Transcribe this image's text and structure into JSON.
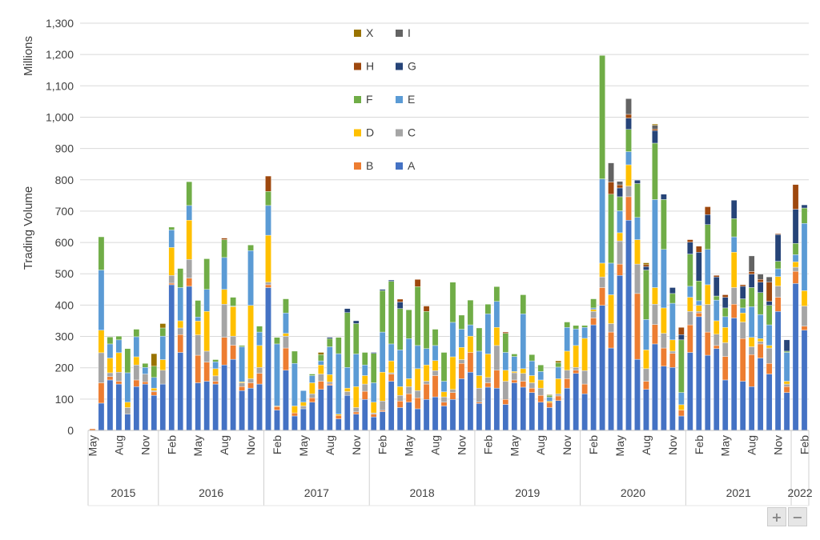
{
  "chart_data": {
    "type": "bar",
    "stacked": true,
    "title": "",
    "ylabel": "Trading Volume",
    "yunit_label": "Millions",
    "ylim": [
      0,
      1300
    ],
    "ytick_step": 100,
    "ytick_labels": [
      "0",
      "100",
      "200",
      "300",
      "400",
      "500",
      "600",
      "700",
      "800",
      "900",
      "1,000",
      "1,100",
      "1,200",
      "1,300"
    ],
    "grid": true,
    "legend_placement": "top-center",
    "first_period": "May 2015",
    "last_period": "Feb 2022",
    "tick_every": 3,
    "x_tick_labels": [
      "May",
      "Aug",
      "Nov",
      "Feb",
      "May",
      "Aug",
      "Nov",
      "Feb",
      "May",
      "Aug",
      "Nov",
      "Feb",
      "May",
      "Aug",
      "Nov",
      "Feb",
      "May",
      "Aug",
      "Nov",
      "Feb",
      "May",
      "Aug",
      "Nov",
      "Feb",
      "May",
      "Aug",
      "Nov",
      "Feb"
    ],
    "years": [
      {
        "label": "2015",
        "months": 8
      },
      {
        "label": "2016",
        "months": 12
      },
      {
        "label": "2017",
        "months": 12
      },
      {
        "label": "2018",
        "months": 12
      },
      {
        "label": "2019",
        "months": 12
      },
      {
        "label": "2020",
        "months": 12
      },
      {
        "label": "2021",
        "months": 12
      },
      {
        "label": "2022",
        "months": 2
      }
    ],
    "series": [
      {
        "name": "A",
        "color": "#4472C4",
        "values": [
          0,
          87,
          161,
          148,
          52,
          140,
          148,
          112,
          148,
          465,
          249,
          460,
          152,
          157,
          148,
          209,
          227,
          127,
          135,
          148,
          456,
          65,
          192,
          46,
          69,
          90,
          131,
          144,
          37,
          112,
          52,
          99,
          43,
          60,
          157,
          73,
          90,
          69,
          99,
          107,
          78,
          99,
          165,
          186,
          86,
          138,
          135,
          83,
          152,
          138,
          121,
          90,
          73,
          95,
          135,
          182,
          117,
          337,
          399,
          263,
          495,
          671,
          227,
          131,
          276,
          205,
          201,
          46,
          249,
          363,
          240,
          261,
          161,
          359,
          157,
          140,
          231,
          180,
          380,
          121,
          469,
          320
        ]
      },
      {
        "name": "B",
        "color": "#ED7D31",
        "values": [
          5,
          65,
          11,
          9,
          0,
          21,
          7,
          11,
          0,
          5,
          57,
          26,
          88,
          61,
          9,
          88,
          45,
          13,
          17,
          34,
          9,
          11,
          71,
          10,
          0,
          14,
          26,
          4,
          11,
          0,
          7,
          26,
          9,
          4,
          23,
          21,
          27,
          35,
          49,
          68,
          12,
          22,
          49,
          63,
          4,
          14,
          57,
          16,
          9,
          19,
          14,
          22,
          16,
          15,
          30,
          10,
          31,
          22,
          57,
          51,
          36,
          75,
          210,
          26,
          62,
          58,
          45,
          19,
          88,
          12,
          74,
          10,
          75,
          44,
          136,
          102,
          45,
          34,
          45,
          19,
          39,
          13
        ]
      },
      {
        "name": "C",
        "color": "#A5A5A5",
        "values": [
          0,
          96,
          12,
          29,
          21,
          48,
          25,
          4,
          44,
          25,
          21,
          60,
          65,
          35,
          17,
          106,
          29,
          12,
          13,
          19,
          8,
          0,
          38,
          0,
          9,
          13,
          23,
          7,
          0,
          12,
          14,
          23,
          4,
          30,
          4,
          18,
          23,
          23,
          9,
          16,
          17,
          10,
          12,
          0,
          45,
          17,
          79,
          58,
          23,
          25,
          17,
          23,
          0,
          7,
          27,
          9,
          43,
          21,
          34,
          27,
          74,
          34,
          94,
          40,
          65,
          47,
          7,
          0,
          43,
          5,
          88,
          36,
          44,
          53,
          53,
          25,
          8,
          49,
          36,
          8,
          13,
          64
        ]
      },
      {
        "name": "D",
        "color": "#FFC000",
        "values": [
          0,
          72,
          47,
          62,
          17,
          26,
          0,
          8,
          34,
          89,
          23,
          125,
          44,
          127,
          23,
          47,
          94,
          3,
          234,
          70,
          150,
          2,
          9,
          22,
          12,
          35,
          29,
          23,
          4,
          11,
          67,
          27,
          34,
          92,
          38,
          28,
          25,
          70,
          52,
          32,
          16,
          104,
          39,
          52,
          40,
          75,
          58,
          35,
          4,
          15,
          23,
          26,
          4,
          48,
          61,
          70,
          103,
          6,
          44,
          92,
          26,
          68,
          78,
          60,
          53,
          81,
          36,
          17,
          45,
          19,
          63,
          43,
          49,
          113,
          29,
          30,
          9,
          8,
          30,
          9,
          17,
          49
        ]
      },
      {
        "name": "E",
        "color": "#5B9BD5",
        "values": [
          0,
          192,
          45,
          41,
          94,
          64,
          21,
          34,
          75,
          56,
          106,
          47,
          13,
          70,
          22,
          102,
          2,
          112,
          175,
          43,
          95,
          198,
          65,
          136,
          37,
          23,
          13,
          89,
          193,
          66,
          104,
          34,
          62,
          128,
          54,
          117,
          128,
          74,
          52,
          48,
          34,
          110,
          58,
          36,
          78,
          128,
          83,
          57,
          48,
          175,
          47,
          27,
          13,
          37,
          76,
          53,
          35,
          5,
          269,
          101,
          70,
          42,
          71,
          97,
          281,
          187,
          117,
          39,
          35,
          15,
          113,
          66,
          34,
          49,
          16,
          98,
          77,
          66,
          25,
          92,
          23,
          215
        ]
      },
      {
        "name": "F",
        "color": "#70AD47",
        "values": [
          0,
          106,
          22,
          12,
          77,
          24,
          13,
          36,
          26,
          9,
          61,
          76,
          53,
          98,
          7,
          57,
          28,
          4,
          18,
          19,
          45,
          21,
          45,
          39,
          0,
          5,
          20,
          26,
          52,
          175,
          97,
          40,
          94,
          132,
          200,
          132,
          92,
          188,
          119,
          52,
          92,
          128,
          45,
          79,
          74,
          31,
          47,
          61,
          8,
          61,
          20,
          21,
          6,
          14,
          17,
          11,
          6,
          29,
          394,
          220,
          45,
          71,
          108,
          158,
          180,
          159,
          31,
          168,
          103,
          63,
          79,
          13,
          28,
          58,
          29,
          61,
          70,
          62,
          24,
          4,
          36,
          49
        ]
      },
      {
        "name": "G",
        "color": "#264478",
        "values": [
          0,
          0,
          0,
          0,
          0,
          0,
          0,
          0,
          0,
          0,
          0,
          0,
          0,
          0,
          0,
          0,
          0,
          0,
          0,
          0,
          0,
          0,
          0,
          0,
          0,
          0,
          0,
          4,
          0,
          13,
          9,
          0,
          3,
          4,
          4,
          21,
          0,
          0,
          0,
          0,
          0,
          0,
          0,
          0,
          0,
          0,
          0,
          0,
          0,
          0,
          0,
          0,
          0,
          0,
          0,
          0,
          0,
          0,
          0,
          0,
          28,
          36,
          11,
          11,
          40,
          17,
          19,
          17,
          38,
          92,
          32,
          61,
          34,
          59,
          40,
          43,
          33,
          13,
          85,
          36,
          109,
          10
        ]
      },
      {
        "name": "H",
        "color": "#9E480E",
        "values": [
          0,
          0,
          0,
          0,
          0,
          0,
          0,
          0,
          0,
          0,
          0,
          0,
          0,
          0,
          0,
          5,
          0,
          0,
          0,
          0,
          49,
          0,
          0,
          0,
          0,
          0,
          0,
          0,
          0,
          0,
          0,
          0,
          0,
          0,
          0,
          9,
          0,
          23,
          17,
          0,
          0,
          0,
          0,
          0,
          0,
          0,
          0,
          4,
          0,
          0,
          0,
          0,
          0,
          0,
          0,
          0,
          0,
          0,
          0,
          39,
          10,
          12,
          0,
          6,
          5,
          0,
          0,
          23,
          8,
          19,
          25,
          5,
          8,
          0,
          5,
          8,
          9,
          61,
          3,
          0,
          79,
          0
        ]
      },
      {
        "name": "I",
        "color": "#636363",
        "values": [
          0,
          0,
          0,
          0,
          0,
          0,
          0,
          0,
          0,
          0,
          0,
          0,
          0,
          0,
          0,
          0,
          0,
          0,
          0,
          0,
          0,
          0,
          0,
          0,
          0,
          0,
          0,
          0,
          0,
          0,
          0,
          0,
          0,
          0,
          0,
          0,
          0,
          0,
          0,
          0,
          0,
          0,
          0,
          0,
          0,
          0,
          0,
          0,
          0,
          0,
          0,
          0,
          0,
          0,
          0,
          0,
          0,
          0,
          0,
          61,
          11,
          50,
          0,
          0,
          12,
          0,
          0,
          0,
          0,
          0,
          0,
          0,
          0,
          0,
          0,
          50,
          17,
          17,
          0,
          0,
          0,
          0
        ]
      },
      {
        "name": "X",
        "color": "#997300",
        "values": [
          0,
          0,
          0,
          0,
          0,
          0,
          0,
          40,
          14,
          0,
          0,
          0,
          0,
          0,
          0,
          0,
          0,
          0,
          0,
          0,
          0,
          0,
          0,
          0,
          0,
          0,
          7,
          0,
          0,
          0,
          0,
          0,
          0,
          0,
          0,
          0,
          0,
          0,
          0,
          0,
          0,
          0,
          0,
          0,
          0,
          0,
          0,
          0,
          0,
          0,
          0,
          0,
          2,
          6,
          0,
          0,
          0,
          0,
          0,
          0,
          0,
          0,
          0,
          6,
          4,
          0,
          0,
          0,
          0,
          0,
          0,
          0,
          0,
          0,
          0,
          0,
          0,
          0,
          0,
          0,
          0,
          0
        ]
      }
    ],
    "legend_order": [
      "X",
      "I",
      "H",
      "G",
      "F",
      "E",
      "D",
      "C",
      "B",
      "A"
    ]
  },
  "controls": {
    "zoom_in": "+",
    "zoom_out": "−"
  }
}
